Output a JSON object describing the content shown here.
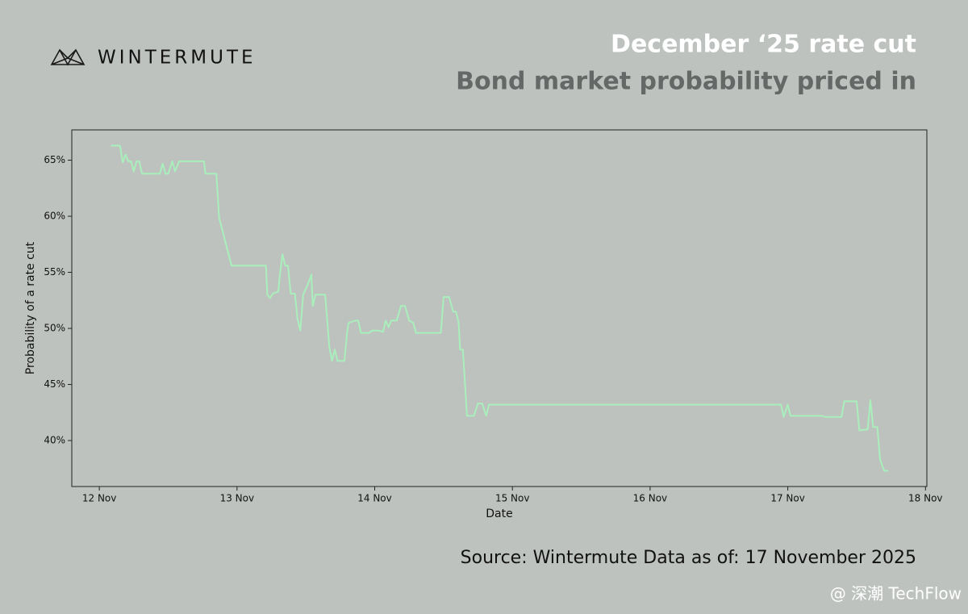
{
  "header": {
    "logo": "WINTERMUTE"
  },
  "footer": {
    "source": "Source: Wintermute  Data as of: 17 November 2025",
    "watermark": "@ 深潮 TechFlow"
  },
  "chart_data": {
    "type": "line",
    "title": "December ‘25 rate cut",
    "subtitle": "Bond market probability priced in",
    "xlabel": "Date",
    "ylabel": "Probability of a rate cut",
    "xlim": [
      11.8,
      18.01
    ],
    "ylim": [
      35.9,
      67.7
    ],
    "xticks": [
      {
        "value": 12,
        "label": "12 Nov"
      },
      {
        "value": 13,
        "label": "13 Nov"
      },
      {
        "value": 14,
        "label": "14 Nov"
      },
      {
        "value": 15,
        "label": "15 Nov"
      },
      {
        "value": 16,
        "label": "16 Nov"
      },
      {
        "value": 17,
        "label": "17 Nov"
      },
      {
        "value": 18,
        "label": "18 Nov"
      }
    ],
    "yticks": [
      {
        "value": 40,
        "label": "40%"
      },
      {
        "value": 45,
        "label": "45%"
      },
      {
        "value": 50,
        "label": "50%"
      },
      {
        "value": 55,
        "label": "55%"
      },
      {
        "value": 60,
        "label": "60%"
      },
      {
        "value": 65,
        "label": "65%"
      }
    ],
    "grid": false,
    "series": [
      {
        "color": "#a9efbb",
        "x": [
          12.085,
          12.15,
          12.17,
          12.19,
          12.21,
          12.23,
          12.25,
          12.27,
          12.29,
          12.31,
          12.44,
          12.46,
          12.48,
          12.5,
          12.53,
          12.55,
          12.58,
          12.64,
          12.66,
          12.76,
          12.77,
          12.85,
          12.87,
          12.89,
          12.96,
          13.21,
          13.22,
          13.24,
          13.26,
          13.3,
          13.31,
          13.33,
          13.35,
          13.37,
          13.39,
          13.42,
          13.44,
          13.46,
          13.48,
          13.51,
          13.54,
          13.55,
          13.57,
          13.64,
          13.67,
          13.69,
          13.71,
          13.73,
          13.78,
          13.8,
          13.81,
          13.86,
          13.88,
          13.9,
          13.96,
          13.98,
          14.03,
          14.06,
          14.08,
          14.1,
          14.12,
          14.16,
          14.19,
          14.22,
          14.25,
          14.28,
          14.3,
          14.48,
          14.5,
          14.54,
          14.57,
          14.59,
          14.61,
          14.62,
          14.64,
          14.67,
          14.72,
          14.75,
          14.78,
          14.81,
          14.83,
          16.95,
          16.97,
          17.0,
          17.02,
          17.08,
          17.25,
          17.27,
          17.39,
          17.41,
          17.5,
          17.52,
          17.58,
          17.6,
          17.62,
          17.65,
          17.67,
          17.7,
          17.73
        ],
        "values": [
          66.3,
          66.3,
          64.8,
          65.5,
          64.9,
          64.9,
          64.0,
          64.9,
          64.9,
          63.8,
          63.8,
          64.7,
          63.8,
          63.8,
          64.9,
          64.0,
          64.9,
          64.9,
          64.9,
          64.9,
          63.8,
          63.8,
          59.9,
          58.9,
          55.6,
          55.6,
          53.0,
          52.7,
          53.1,
          53.3,
          54.6,
          56.6,
          55.6,
          55.6,
          53.1,
          53.1,
          50.8,
          49.8,
          53.0,
          53.8,
          54.8,
          52.0,
          53.0,
          53.0,
          48.4,
          47.1,
          48.1,
          47.1,
          47.1,
          49.7,
          50.5,
          50.7,
          50.7,
          49.6,
          49.6,
          49.8,
          49.8,
          49.7,
          50.7,
          50.1,
          50.7,
          50.7,
          52.0,
          52.0,
          50.7,
          50.5,
          49.6,
          49.6,
          52.8,
          52.8,
          51.5,
          51.5,
          50.5,
          48.1,
          48.1,
          42.2,
          42.2,
          43.3,
          43.3,
          42.2,
          43.2,
          43.2,
          42.1,
          43.2,
          42.2,
          42.2,
          42.2,
          42.1,
          42.1,
          43.5,
          43.5,
          40.9,
          41.0,
          43.6,
          41.2,
          41.2,
          38.3,
          37.3,
          37.3
        ]
      }
    ]
  }
}
